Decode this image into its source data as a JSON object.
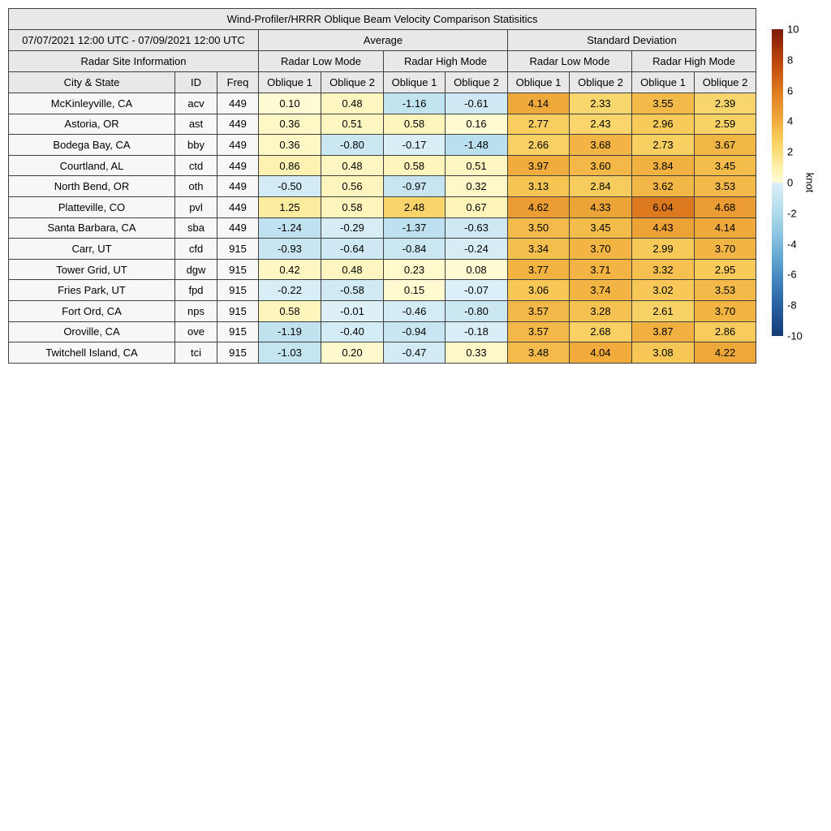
{
  "chart_data": {
    "type": "heatmap",
    "title": "Wind-Profiler/HRRR Oblique Beam Velocity Comparison Statisitics",
    "period": "07/07/2021 12:00 UTC - 07/09/2021 12:00 UTC",
    "unit": "knot",
    "vmin": -10,
    "vmax": 10,
    "groups": {
      "site_info": "Radar Site Information",
      "average": "Average",
      "std": "Standard Deviation",
      "low_mode": "Radar Low Mode",
      "high_mode": "Radar High Mode"
    },
    "columns": [
      "City & State",
      "ID",
      "Freq",
      "Oblique 1",
      "Oblique 2",
      "Oblique 1",
      "Oblique 2",
      "Oblique 1",
      "Oblique 2",
      "Oblique 1",
      "Oblique 2"
    ],
    "value_columns": [
      "Average Low Oblique 1",
      "Average Low Oblique 2",
      "Average High Oblique 1",
      "Average High Oblique 2",
      "StdDev Low Oblique 1",
      "StdDev Low Oblique 2",
      "StdDev High Oblique 1",
      "StdDev High Oblique 2"
    ],
    "sites": [
      {
        "city": "McKinleyville, CA",
        "id": "acv",
        "freq": "449",
        "values": [
          0.1,
          0.48,
          -1.16,
          -0.61,
          4.14,
          2.33,
          3.55,
          2.39
        ]
      },
      {
        "city": "Astoria, OR",
        "id": "ast",
        "freq": "449",
        "values": [
          0.36,
          0.51,
          0.58,
          0.16,
          2.77,
          2.43,
          2.96,
          2.59
        ]
      },
      {
        "city": "Bodega Bay, CA",
        "id": "bby",
        "freq": "449",
        "values": [
          0.36,
          -0.8,
          -0.17,
          -1.48,
          2.66,
          3.68,
          2.73,
          3.67
        ]
      },
      {
        "city": "Courtland, AL",
        "id": "ctd",
        "freq": "449",
        "values": [
          0.86,
          0.48,
          0.58,
          0.51,
          3.97,
          3.6,
          3.84,
          3.45
        ]
      },
      {
        "city": "North Bend, OR",
        "id": "oth",
        "freq": "449",
        "values": [
          -0.5,
          0.56,
          -0.97,
          0.32,
          3.13,
          2.84,
          3.62,
          3.53
        ]
      },
      {
        "city": "Platteville, CO",
        "id": "pvl",
        "freq": "449",
        "values": [
          1.25,
          0.58,
          2.48,
          0.67,
          4.62,
          4.33,
          6.04,
          4.68
        ]
      },
      {
        "city": "Santa Barbara, CA",
        "id": "sba",
        "freq": "449",
        "values": [
          -1.24,
          -0.29,
          -1.37,
          -0.63,
          3.5,
          3.45,
          4.43,
          4.14
        ]
      },
      {
        "city": "Carr, UT",
        "id": "cfd",
        "freq": "915",
        "values": [
          -0.93,
          -0.64,
          -0.84,
          -0.24,
          3.34,
          3.7,
          2.99,
          3.7
        ]
      },
      {
        "city": "Tower Grid, UT",
        "id": "dgw",
        "freq": "915",
        "values": [
          0.42,
          0.48,
          0.23,
          0.08,
          3.77,
          3.71,
          3.32,
          2.95
        ]
      },
      {
        "city": "Fries Park, UT",
        "id": "fpd",
        "freq": "915",
        "values": [
          -0.22,
          -0.58,
          0.15,
          -0.07,
          3.06,
          3.74,
          3.02,
          3.53
        ]
      },
      {
        "city": "Fort Ord, CA",
        "id": "nps",
        "freq": "915",
        "values": [
          0.58,
          -0.01,
          -0.46,
          -0.8,
          3.57,
          3.28,
          2.61,
          3.7
        ]
      },
      {
        "city": "Oroville, CA",
        "id": "ove",
        "freq": "915",
        "values": [
          -1.19,
          -0.4,
          -0.94,
          -0.18,
          3.57,
          2.68,
          3.87,
          2.86
        ]
      },
      {
        "city": "Twitchell Island, CA",
        "id": "tci",
        "freq": "915",
        "values": [
          -1.03,
          0.2,
          -0.47,
          0.33,
          3.48,
          4.04,
          3.08,
          4.22
        ]
      }
    ]
  },
  "colorbar": {
    "unit": "knot",
    "ticks": [
      10,
      8,
      6,
      4,
      2,
      0,
      -2,
      -4,
      -6,
      -8,
      -10
    ],
    "vmin": -10,
    "vmax": 10,
    "stops": [
      [
        10,
        "#7d1a0a"
      ],
      [
        9,
        "#9c2d0a"
      ],
      [
        8,
        "#b8440c"
      ],
      [
        7,
        "#cc5c15"
      ],
      [
        6,
        "#de7a1f"
      ],
      [
        5,
        "#e8942e"
      ],
      [
        4,
        "#f0ac3c"
      ],
      [
        3,
        "#f7c958"
      ],
      [
        2,
        "#fade7b"
      ],
      [
        1,
        "#fdf0ab"
      ],
      [
        0.001,
        "#fffcd6"
      ],
      [
        -0.001,
        "#ddf0f8"
      ],
      [
        -1,
        "#c6e5f1"
      ],
      [
        -2,
        "#aedaeb"
      ],
      [
        -3,
        "#96cbe4"
      ],
      [
        -4,
        "#7cb9dc"
      ],
      [
        -5,
        "#62a4d0"
      ],
      [
        -6,
        "#4b8dc2"
      ],
      [
        -7,
        "#3876b2"
      ],
      [
        -8,
        "#2a62a2"
      ],
      [
        -9,
        "#1e4e8d"
      ],
      [
        -10,
        "#143b73"
      ]
    ]
  },
  "ui_colors": {
    "header_bg": "#e8e8e8",
    "info_cell_bg": "#f7f7f7",
    "border": "#3f3f3f",
    "page_bg": "#ffffff"
  }
}
